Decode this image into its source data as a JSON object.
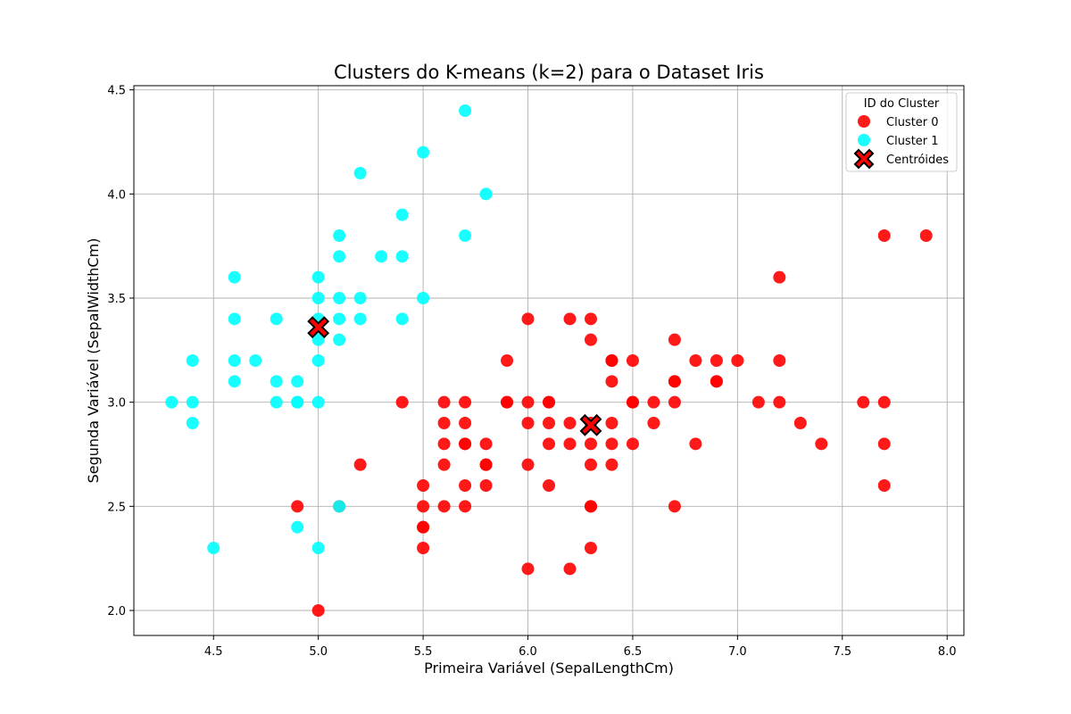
{
  "chart_data": {
    "type": "scatter",
    "title": "Clusters do K-means (k=2) para o Dataset Iris",
    "xlabel": "Primeira Variável (SepalLengthCm)",
    "ylabel": "Segunda Variável (SepalWidthCm)",
    "xlim": [
      4.12,
      8.08
    ],
    "ylim": [
      1.88,
      4.52
    ],
    "xticks": [
      "4.5",
      "5.0",
      "5.5",
      "6.0",
      "6.5",
      "7.0",
      "7.5",
      "8.0"
    ],
    "yticks": [
      "2.0",
      "2.5",
      "3.0",
      "3.5",
      "4.0",
      "4.5"
    ],
    "grid": true,
    "legend_title": "ID do Cluster",
    "legend_position": "top-right",
    "series": [
      {
        "name": "Cluster 0",
        "color": "#ff0000",
        "points": [
          [
            7.0,
            3.2
          ],
          [
            6.4,
            3.2
          ],
          [
            6.9,
            3.1
          ],
          [
            5.5,
            2.3
          ],
          [
            6.5,
            2.8
          ],
          [
            5.7,
            2.8
          ],
          [
            6.3,
            3.3
          ],
          [
            6.6,
            2.9
          ],
          [
            5.2,
            2.7
          ],
          [
            5.0,
            2.0
          ],
          [
            5.9,
            3.0
          ],
          [
            6.0,
            2.2
          ],
          [
            6.1,
            2.9
          ],
          [
            5.6,
            2.9
          ],
          [
            6.7,
            3.1
          ],
          [
            5.6,
            3.0
          ],
          [
            5.8,
            2.7
          ],
          [
            6.2,
            2.2
          ],
          [
            5.6,
            2.5
          ],
          [
            5.9,
            3.2
          ],
          [
            6.1,
            2.8
          ],
          [
            6.3,
            2.5
          ],
          [
            6.4,
            2.9
          ],
          [
            6.6,
            3.0
          ],
          [
            6.8,
            2.8
          ],
          [
            6.7,
            3.0
          ],
          [
            6.0,
            2.9
          ],
          [
            5.7,
            2.6
          ],
          [
            5.5,
            2.4
          ],
          [
            5.8,
            2.7
          ],
          [
            6.0,
            2.7
          ],
          [
            5.4,
            3.0
          ],
          [
            6.0,
            3.4
          ],
          [
            6.3,
            2.3
          ],
          [
            5.5,
            2.5
          ],
          [
            5.5,
            2.6
          ],
          [
            6.1,
            3.0
          ],
          [
            5.8,
            2.6
          ],
          [
            5.6,
            2.7
          ],
          [
            5.7,
            3.0
          ],
          [
            5.7,
            2.9
          ],
          [
            6.2,
            2.9
          ],
          [
            5.1,
            2.5
          ],
          [
            6.3,
            2.9
          ],
          [
            7.1,
            3.0
          ],
          [
            6.5,
            3.0
          ],
          [
            7.6,
            3.0
          ],
          [
            4.9,
            2.5
          ],
          [
            7.3,
            2.9
          ],
          [
            6.7,
            2.5
          ],
          [
            7.2,
            3.6
          ],
          [
            6.4,
            2.7
          ],
          [
            5.7,
            2.5
          ],
          [
            5.8,
            2.8
          ],
          [
            6.5,
            3.2
          ],
          [
            7.7,
            3.8
          ],
          [
            7.7,
            2.6
          ],
          [
            6.9,
            3.2
          ],
          [
            5.6,
            2.8
          ],
          [
            7.7,
            2.8
          ],
          [
            6.3,
            2.7
          ],
          [
            6.7,
            3.3
          ],
          [
            7.2,
            3.2
          ],
          [
            6.2,
            2.8
          ],
          [
            6.1,
            3.0
          ],
          [
            6.4,
            2.8
          ],
          [
            7.2,
            3.0
          ],
          [
            7.4,
            2.8
          ],
          [
            7.9,
            3.8
          ],
          [
            6.3,
            2.8
          ],
          [
            6.1,
            2.6
          ],
          [
            7.7,
            3.0
          ],
          [
            6.3,
            3.4
          ],
          [
            6.4,
            3.1
          ],
          [
            6.0,
            3.0
          ],
          [
            6.9,
            3.1
          ],
          [
            6.8,
            3.2
          ],
          [
            6.7,
            3.1
          ],
          [
            6.2,
            3.4
          ],
          [
            6.5,
            3.0
          ],
          [
            5.9,
            3.0
          ],
          [
            6.3,
            2.5
          ],
          [
            6.4,
            3.2
          ],
          [
            5.5,
            2.4
          ],
          [
            5.7,
            2.8
          ]
        ]
      },
      {
        "name": "Cluster 1",
        "color": "#00ffff",
        "points": [
          [
            5.1,
            3.5
          ],
          [
            4.9,
            3.0
          ],
          [
            4.7,
            3.2
          ],
          [
            4.6,
            3.1
          ],
          [
            5.0,
            3.6
          ],
          [
            5.4,
            3.9
          ],
          [
            4.6,
            3.4
          ],
          [
            5.0,
            3.4
          ],
          [
            4.4,
            2.9
          ],
          [
            4.9,
            3.1
          ],
          [
            5.4,
            3.7
          ],
          [
            4.8,
            3.4
          ],
          [
            4.8,
            3.0
          ],
          [
            4.3,
            3.0
          ],
          [
            5.8,
            4.0
          ],
          [
            5.7,
            4.4
          ],
          [
            5.1,
            3.8
          ],
          [
            5.7,
            3.8
          ],
          [
            5.2,
            3.5
          ],
          [
            5.1,
            3.7
          ],
          [
            4.6,
            3.6
          ],
          [
            5.1,
            3.3
          ],
          [
            4.8,
            3.1
          ],
          [
            5.0,
            3.0
          ],
          [
            5.2,
            3.4
          ],
          [
            5.4,
            3.4
          ],
          [
            5.2,
            4.1
          ],
          [
            5.5,
            4.2
          ],
          [
            5.5,
            3.5
          ],
          [
            4.4,
            3.0
          ],
          [
            5.0,
            3.5
          ],
          [
            4.5,
            2.3
          ],
          [
            4.4,
            3.2
          ],
          [
            5.1,
            3.4
          ],
          [
            5.3,
            3.7
          ],
          [
            5.0,
            3.3
          ],
          [
            5.0,
            3.2
          ],
          [
            4.9,
            2.4
          ],
          [
            5.0,
            2.3
          ],
          [
            4.6,
            3.2
          ],
          [
            4.9,
            3.0
          ],
          [
            5.1,
            2.5
          ]
        ]
      }
    ],
    "centroids": {
      "name": "Centróides",
      "color": "#ff0000",
      "points": [
        [
          6.3,
          2.89
        ],
        [
          5.0,
          3.36
        ]
      ]
    }
  }
}
